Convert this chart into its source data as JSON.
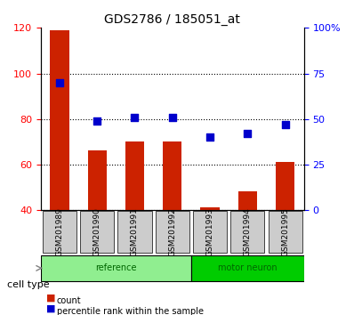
{
  "title": "GDS2786 / 185051_at",
  "samples": [
    "GSM201989",
    "GSM201990",
    "GSM201991",
    "GSM201992",
    "GSM201993",
    "GSM201994",
    "GSM201995"
  ],
  "counts": [
    119,
    66,
    70,
    70,
    41,
    48,
    61
  ],
  "percentiles": [
    70,
    49,
    51,
    51,
    40,
    42,
    47
  ],
  "groups": [
    {
      "label": "reference",
      "indices": [
        0,
        1,
        2,
        3
      ],
      "color": "#90EE90"
    },
    {
      "label": "motor neuron",
      "indices": [
        4,
        5,
        6
      ],
      "color": "#00CC00"
    }
  ],
  "ylim_left": [
    40,
    120
  ],
  "ylim_right": [
    0,
    100
  ],
  "yticks_left": [
    40,
    60,
    80,
    100,
    120
  ],
  "yticks_right": [
    0,
    25,
    50,
    75,
    100
  ],
  "ytick_labels_right": [
    "0",
    "25",
    "50",
    "75",
    "100%"
  ],
  "bar_color": "#CC2200",
  "scatter_color": "#0000CC",
  "bar_width": 0.5,
  "grid_color": "black",
  "bg_color": "#CCCCCC",
  "group_label_color": "#006600",
  "cell_type_label": "cell type",
  "legend_items": [
    {
      "label": "count",
      "color": "#CC2200"
    },
    {
      "label": "percentile rank within the sample",
      "color": "#0000CC"
    }
  ]
}
